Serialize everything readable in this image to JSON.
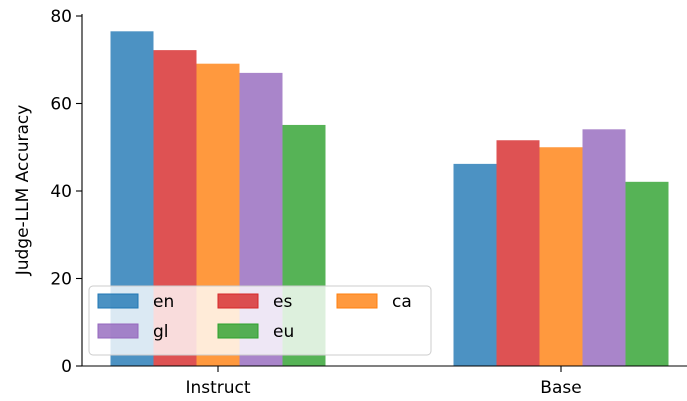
{
  "chart_data": {
    "type": "bar",
    "categories": [
      "Instruct",
      "Base"
    ],
    "series": [
      {
        "name": "en",
        "color": "#1f77b4",
        "values": [
          76.5,
          46.2
        ]
      },
      {
        "name": "es",
        "color": "#d62728",
        "values": [
          72.2,
          51.6
        ]
      },
      {
        "name": "ca",
        "color": "#ff7f0e",
        "values": [
          69.1,
          50.0
        ]
      },
      {
        "name": "gl",
        "color": "#9467bd",
        "values": [
          67.0,
          54.1
        ]
      },
      {
        "name": "eu",
        "color": "#2ca02c",
        "values": [
          55.1,
          42.1
        ]
      }
    ],
    "ylabel": "Judge-LLM Accuracy",
    "ylim": [
      0,
      80
    ],
    "yticks": [
      0,
      20,
      40,
      60,
      80
    ],
    "legend": {
      "placement": "lower-left",
      "columns": 3
    },
    "grid": false,
    "bar_opacity": 0.8
  }
}
